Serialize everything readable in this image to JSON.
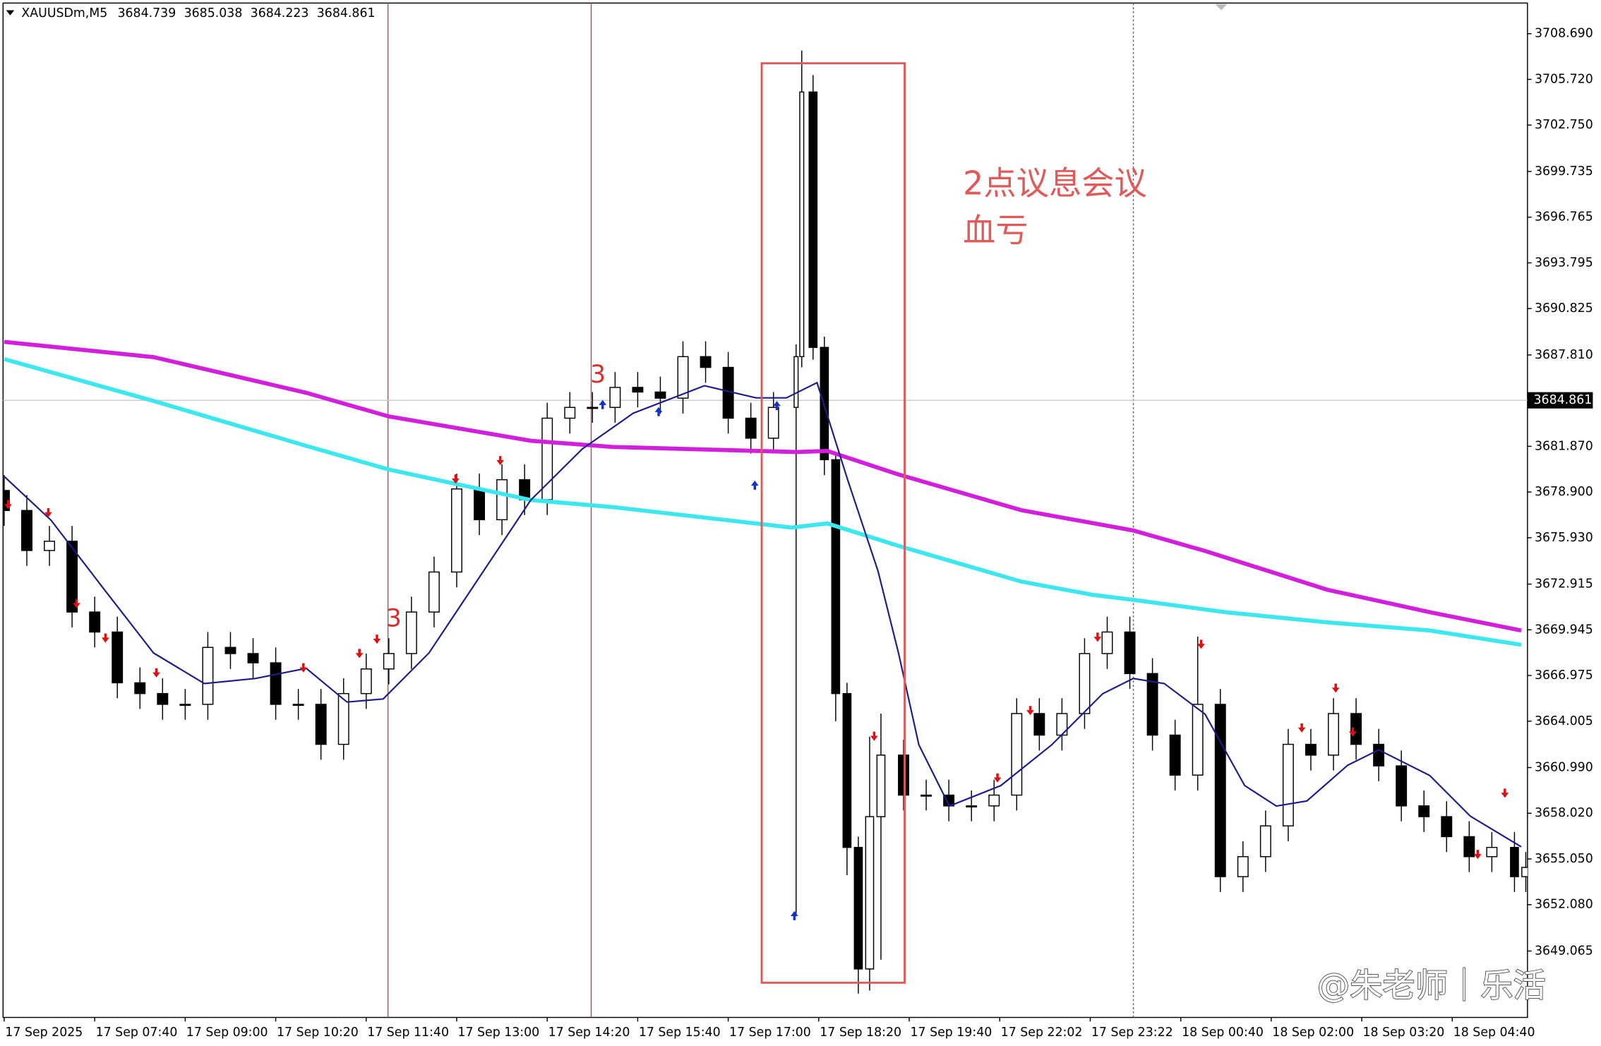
{
  "chart_data": {
    "type": "candlestick",
    "header": {
      "symbol": "XAUUSDm,M5",
      "open": 3684.739,
      "high": 3685.038,
      "low": 3684.223,
      "close": 3684.861
    },
    "annotation": [
      "2点议息会议",
      "血亏"
    ],
    "wave_labels": [
      "3",
      "3"
    ],
    "watermark": "@朱老师｜乐活",
    "up_color": "#ffffff",
    "down_color": "#000000",
    "x": [
      0,
      4,
      8,
      12,
      16,
      20,
      24,
      28,
      32,
      36,
      40,
      44,
      48,
      52,
      56,
      60,
      64,
      68,
      72,
      76,
      80,
      84,
      88,
      92,
      96,
      100,
      104,
      108,
      112,
      116,
      120,
      124,
      128,
      132,
      136,
      140,
      141,
      143,
      145,
      147,
      149,
      151,
      153,
      155,
      159,
      163,
      167,
      171,
      175,
      179,
      183,
      187,
      191,
      195,
      199,
      203,
      207,
      211,
      215,
      219,
      223,
      227,
      231,
      235,
      239,
      243,
      247,
      251,
      255,
      259,
      263,
      267,
      269
    ],
    "open": [
      3679.0,
      3677.7,
      3675.1,
      3675.7,
      3671.1,
      3669.8,
      3666.5,
      3665.8,
      3665.1,
      3665.1,
      3668.8,
      3668.4,
      3667.8,
      3665.1,
      3665.1,
      3662.5,
      3665.8,
      3667.4,
      3668.4,
      3671.1,
      3673.7,
      3679.1,
      3677.1,
      3679.7,
      3678.4,
      3683.7,
      3684.4,
      3684.4,
      3685.7,
      3685.4,
      3685.0,
      3687.7,
      3687.0,
      3683.7,
      3682.4,
      3684.4,
      3687.7,
      3704.9,
      3688.3,
      3681.0,
      3665.8,
      3655.8,
      3647.9,
      3657.8,
      3661.8,
      3659.2,
      3659.2,
      3658.5,
      3658.5,
      3659.2,
      3664.5,
      3663.1,
      3664.5,
      3668.4,
      3669.8,
      3667.1,
      3663.1,
      3660.5,
      3665.1,
      3653.9,
      3655.2,
      3657.2,
      3662.5,
      3661.8,
      3664.5,
      3662.5,
      3661.1,
      3658.5,
      3657.8,
      3656.5,
      3655.2,
      3655.8,
      3653.9
    ],
    "high": [
      3680.0,
      3678.7,
      3676.7,
      3676.7,
      3672.1,
      3670.8,
      3667.5,
      3666.8,
      3666.1,
      3669.8,
      3669.8,
      3669.4,
      3668.8,
      3666.1,
      3666.1,
      3666.8,
      3668.4,
      3669.4,
      3672.1,
      3674.7,
      3680.1,
      3680.1,
      3680.7,
      3680.7,
      3684.7,
      3685.4,
      3685.4,
      3686.7,
      3686.7,
      3686.4,
      3688.7,
      3688.7,
      3688.0,
      3684.7,
      3685.4,
      3688.5,
      3707.6,
      3706.0,
      3689.0,
      3681.5,
      3666.5,
      3656.5,
      3663.0,
      3664.5,
      3662.8,
      3660.2,
      3660.2,
      3659.5,
      3660.2,
      3665.5,
      3665.5,
      3665.5,
      3669.4,
      3670.8,
      3670.8,
      3668.1,
      3664.1,
      3669.5,
      3666.1,
      3656.2,
      3658.2,
      3663.5,
      3663.5,
      3665.5,
      3665.5,
      3663.5,
      3662.1,
      3659.5,
      3658.8,
      3657.5,
      3656.8,
      3656.8,
      3655.5
    ],
    "low": [
      3676.7,
      3674.1,
      3674.1,
      3670.1,
      3668.8,
      3665.5,
      3664.8,
      3664.1,
      3664.1,
      3664.1,
      3667.4,
      3666.8,
      3664.1,
      3664.1,
      3661.5,
      3661.5,
      3664.8,
      3666.4,
      3667.4,
      3670.1,
      3672.7,
      3676.1,
      3676.1,
      3677.4,
      3677.4,
      3682.7,
      3683.4,
      3683.4,
      3684.4,
      3684.0,
      3684.0,
      3686.0,
      3682.7,
      3681.4,
      3681.4,
      3651.5,
      3687.0,
      3687.5,
      3680.0,
      3664.0,
      3654.0,
      3646.3,
      3646.5,
      3648.5,
      3658.2,
      3658.2,
      3657.5,
      3657.5,
      3657.5,
      3658.2,
      3662.1,
      3662.1,
      3663.5,
      3667.4,
      3666.1,
      3662.1,
      3659.5,
      3659.5,
      3652.9,
      3652.9,
      3654.2,
      3656.2,
      3660.8,
      3660.8,
      3661.5,
      3660.1,
      3657.5,
      3656.8,
      3655.5,
      3654.2,
      3654.2,
      3652.9,
      3652.9
    ],
    "close": [
      3677.7,
      3675.1,
      3675.7,
      3671.1,
      3669.8,
      3666.5,
      3665.8,
      3665.1,
      3665.1,
      3668.8,
      3668.4,
      3667.8,
      3665.1,
      3665.1,
      3662.5,
      3665.8,
      3667.4,
      3668.4,
      3671.1,
      3673.7,
      3679.1,
      3677.1,
      3679.7,
      3678.4,
      3683.7,
      3684.4,
      3684.4,
      3685.7,
      3685.4,
      3685.0,
      3687.7,
      3687.0,
      3683.7,
      3682.4,
      3684.4,
      3687.7,
      3704.9,
      3688.3,
      3681.0,
      3665.8,
      3655.8,
      3647.9,
      3657.8,
      3661.8,
      3659.2,
      3659.2,
      3658.5,
      3658.5,
      3659.2,
      3664.5,
      3663.1,
      3664.5,
      3668.4,
      3669.8,
      3667.1,
      3663.1,
      3660.5,
      3665.1,
      3653.9,
      3655.2,
      3657.2,
      3662.5,
      3661.8,
      3664.5,
      3662.5,
      3661.1,
      3658.5,
      3657.8,
      3656.5,
      3655.2,
      3655.8,
      3653.9,
      3654.5
    ],
    "lines": [
      {
        "color": "#d21fdc",
        "x": [
          0,
          26.4,
          53.4,
          67.9,
          93.1,
          107.6,
          140.1,
          145.5,
          158.1,
          179.8,
          199.6,
          212.3,
          233.9,
          252,
          268.2
        ],
        "values": [
          3688.66,
          3687.67,
          3685.35,
          3683.82,
          3682.23,
          3681.83,
          3681.5,
          3681.57,
          3680.04,
          3677.72,
          3676.4,
          3675.07,
          3672.55,
          3671.09,
          3669.9
        ]
      },
      {
        "color": "#3ee6ee",
        "x": [
          0,
          26.4,
          53.4,
          67.9,
          93.1,
          107.6,
          139.2,
          145.5,
          158.1,
          179.8,
          192.4,
          199.6,
          215.9,
          233.9,
          252,
          268.2
        ],
        "values": [
          3687.54,
          3684.82,
          3681.9,
          3680.37,
          3678.38,
          3677.92,
          3676.59,
          3676.86,
          3675.4,
          3673.08,
          3672.22,
          3671.89,
          3671.09,
          3670.43,
          3669.9,
          3668.97
        ]
      },
      {
        "color": "#1c1c8a",
        "x": [
          0,
          8.3,
          17.3,
          26.4,
          35.4,
          44.4,
          53.4,
          60.6,
          67,
          75.1,
          84.1,
          93.1,
          102.2,
          111.2,
          123.8,
          132.9,
          138.3,
          143.7,
          149.1,
          154.5,
          158.1,
          161.7,
          167.1,
          176.2,
          185.2,
          194.2,
          199.6,
          205.1,
          212.3,
          219.3,
          224.9,
          230.3,
          237.5,
          243,
          252,
          259.2,
          268.2
        ],
        "values": [
          3679.91,
          3677.06,
          3672.75,
          3668.44,
          3666.45,
          3666.78,
          3667.44,
          3665.25,
          3665.45,
          3668.44,
          3673.41,
          3678.38,
          3681.7,
          3684.02,
          3685.81,
          3685.02,
          3685.02,
          3686.01,
          3679.71,
          3673.74,
          3668.44,
          3662.47,
          3658.49,
          3659.82,
          3662.47,
          3665.79,
          3666.78,
          3666.45,
          3664.46,
          3659.82,
          3658.49,
          3658.82,
          3661.14,
          3662.14,
          3660.48,
          3657.83,
          3655.84
        ]
      }
    ],
    "sell_signals": {
      "color": "#e01010",
      "x": [
        0.7,
        7.8,
        12.8,
        17.9,
        26.9,
        52.9,
        62.8,
        65.9,
        79.8,
        87.7,
        153.8,
        175.6,
        181.4,
        193.3,
        211.6,
        229.4,
        235.4,
        238.4,
        260.5,
        265.3
      ],
      "y": [
        3678.05,
        3677.52,
        3671.62,
        3669.37,
        3667.11,
        3667.44,
        3668.37,
        3669.3,
        3679.71,
        3680.91,
        3662.99,
        3660.28,
        3664.66,
        3669.43,
        3668.97,
        3663.53,
        3666.12,
        3663.27,
        3655.31,
        3659.29
      ]
    },
    "buy_signals": {
      "color": "#1530c8",
      "x": [
        105.8,
        115.7,
        132.7,
        136.6,
        139.7
      ],
      "y": [
        3684.62,
        3684.16,
        3679.38,
        3684.55,
        3651.4
      ]
    },
    "current_price": 3684.861,
    "xlim": [
      -0.2,
      269.3
    ],
    "xticks": [
      {
        "value": 0,
        "label": "17 Sep 2025"
      },
      {
        "value": 16,
        "label": "17 Sep 07:40"
      },
      {
        "value": 32,
        "label": "17 Sep 09:00"
      },
      {
        "value": 48,
        "label": "17 Sep 10:20"
      },
      {
        "value": 64,
        "label": "17 Sep 11:40"
      },
      {
        "value": 80,
        "label": "17 Sep 13:00"
      },
      {
        "value": 96,
        "label": "17 Sep 14:20"
      },
      {
        "value": 112,
        "label": "17 Sep 15:40"
      },
      {
        "value": 128,
        "label": "17 Sep 17:00"
      },
      {
        "value": 144,
        "label": "17 Sep 18:20"
      },
      {
        "value": 160,
        "label": "17 Sep 19:40"
      },
      {
        "value": 176,
        "label": "17 Sep 22:02"
      },
      {
        "value": 192,
        "label": "17 Sep 23:22"
      },
      {
        "value": 208,
        "label": "18 Sep 00:40"
      },
      {
        "value": 224,
        "label": "18 Sep 02:00"
      },
      {
        "value": 240,
        "label": "18 Sep 03:20"
      },
      {
        "value": 256,
        "label": "18 Sep 04:40"
      }
    ],
    "ylim": [
      3644.75,
      3710.88
    ],
    "yticks": [
      {
        "value": 3708.69,
        "label": "3708.690"
      },
      {
        "value": 3705.72,
        "label": "3705.720"
      },
      {
        "value": 3702.75,
        "label": "3702.750"
      },
      3699.735,
      3696.765,
      3693.795,
      3690.825,
      {
        "value": 3687.81,
        "label": "3687.810"
      },
      {
        "value": 3681.87,
        "label": "3681.870"
      },
      {
        "value": 3678.9,
        "label": "3678.900"
      },
      {
        "value": 3675.93,
        "label": "3675.930"
      },
      3672.915,
      3669.945,
      3666.975,
      3664.005,
      {
        "value": 3660.99,
        "label": "3660.990"
      },
      {
        "value": 3658.02,
        "label": "3658.020"
      },
      {
        "value": 3655.05,
        "label": "3655.050"
      },
      {
        "value": 3652.08,
        "label": "3652.080"
      },
      3649.065
    ]
  }
}
